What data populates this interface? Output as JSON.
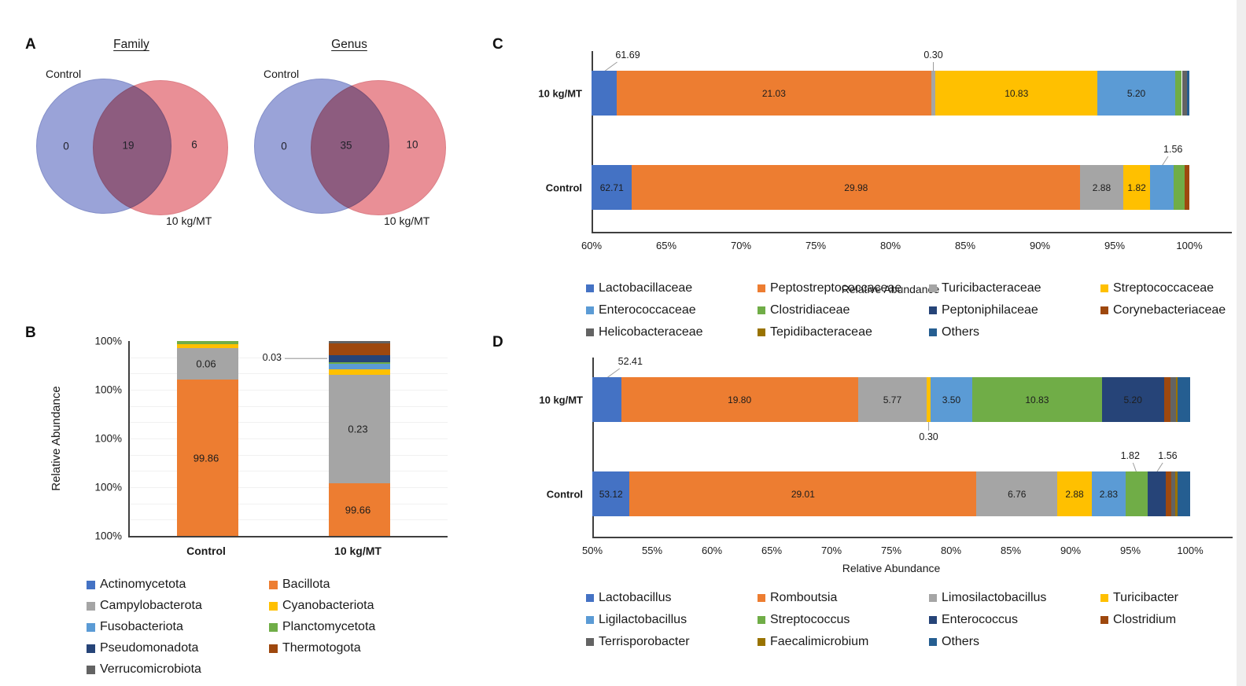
{
  "palette": {
    "blue": "#4472C4",
    "orange": "#ED7D31",
    "gray": "#A5A5A5",
    "yellow": "#FFC000",
    "lightblue": "#5B9BD5",
    "green": "#70AD47",
    "navy": "#264478",
    "darkred": "#9E480E",
    "darkgray": "#636363",
    "olive": "#997300",
    "steel": "#255E91",
    "venn_blue": "#9AA3D8",
    "venn_red": "#E98F96"
  },
  "chart_data": [
    {
      "id": "A",
      "type": "venn",
      "label": "A",
      "diagrams": [
        {
          "title": "Family",
          "left_label": "Control",
          "right_label": "10 kg/MT",
          "left_only": "0",
          "overlap": "19",
          "right_only": "6"
        },
        {
          "title": "Genus",
          "left_label": "Control",
          "right_label": "10 kg/MT",
          "left_only": "0",
          "overlap": "35",
          "right_only": "10"
        }
      ]
    },
    {
      "id": "B",
      "type": "bar",
      "stacked": true,
      "orientation": "vertical",
      "label": "B",
      "ylabel": "Relative Abundance",
      "y_ticks": [
        "100%",
        "100%",
        "100%",
        "100%",
        "100%"
      ],
      "grid": true,
      "legend": [
        {
          "name": "Actinomycetota",
          "color": "blue"
        },
        {
          "name": "Bacillota",
          "color": "orange"
        },
        {
          "name": "Campylobacterota",
          "color": "gray"
        },
        {
          "name": "Cyanobacteriota",
          "color": "yellow"
        },
        {
          "name": "Fusobacteriota",
          "color": "lightblue"
        },
        {
          "name": "Planctomycetota",
          "color": "green"
        },
        {
          "name": "Pseudomonadota",
          "color": "navy"
        },
        {
          "name": "Thermotogota",
          "color": "darkred"
        },
        {
          "name": "Verrucomicrobiota",
          "color": "darkgray"
        }
      ],
      "bars": [
        {
          "category": "Control",
          "segments": [
            {
              "color": "orange",
              "height_pct": 80.2,
              "label": "99.86"
            },
            {
              "color": "gray",
              "height_pct": 16.0,
              "label": "0.06"
            },
            {
              "color": "yellow",
              "height_pct": 2.3
            },
            {
              "color": "green",
              "height_pct": 1.5
            }
          ]
        },
        {
          "category": "10 kg/MT",
          "segments": [
            {
              "color": "orange",
              "height_pct": 27.0,
              "label": "99.66"
            },
            {
              "color": "gray",
              "height_pct": 55.8,
              "label": "0.23"
            },
            {
              "color": "yellow",
              "height_pct": 2.8
            },
            {
              "color": "lightblue",
              "height_pct": 2.8
            },
            {
              "color": "green",
              "height_pct": 0.9
            },
            {
              "color": "navy",
              "height_pct": 3.5,
              "label": "0.03",
              "callout": "left"
            },
            {
              "color": "darkred",
              "height_pct": 6.0
            },
            {
              "color": "darkgray",
              "height_pct": 1.2
            }
          ]
        }
      ]
    },
    {
      "id": "C",
      "type": "bar",
      "stacked": true,
      "orientation": "horizontal",
      "label": "C",
      "xlabel": "Relative Abundance",
      "xlim": [
        60,
        100
      ],
      "x_ticks": [
        "60%",
        "65%",
        "70%",
        "75%",
        "80%",
        "85%",
        "90%",
        "95%",
        "100%"
      ],
      "legend": [
        {
          "name": "Lactobacillaceae",
          "color": "blue"
        },
        {
          "name": "Peptostreptococcaceae",
          "color": "orange"
        },
        {
          "name": "Turicibacteraceae",
          "color": "gray"
        },
        {
          "name": "Streptococcaceae",
          "color": "yellow"
        },
        {
          "name": "Enterococcaceae",
          "color": "lightblue"
        },
        {
          "name": "Clostridiaceae",
          "color": "green"
        },
        {
          "name": "Peptoniphilaceae",
          "color": "navy"
        },
        {
          "name": "Corynebacteriaceae",
          "color": "darkred"
        },
        {
          "name": "Helicobacteraceae",
          "color": "darkgray"
        },
        {
          "name": "Tepidibacteraceae",
          "color": "olive"
        },
        {
          "name": "Others",
          "color": "steel"
        }
      ],
      "rows": [
        {
          "category": "10 kg/MT",
          "segments": [
            {
              "color": "blue",
              "value": 1.69,
              "label": "61.69",
              "callout": "above",
              "callout_dx": 30
            },
            {
              "color": "orange",
              "value": 21.03,
              "label": "21.03"
            },
            {
              "color": "gray",
              "value": 0.3,
              "label": "0.30",
              "callout": "above"
            },
            {
              "color": "yellow",
              "value": 10.83,
              "label": "10.83"
            },
            {
              "color": "lightblue",
              "value": 5.2,
              "label": "5.20"
            },
            {
              "color": "green",
              "value": 0.45
            },
            {
              "color": "darkgray",
              "value": 0.35
            },
            {
              "color": "steel",
              "value": 0.15
            }
          ]
        },
        {
          "category": "Control",
          "segments": [
            {
              "color": "blue",
              "value": 2.71,
              "label": "62.71"
            },
            {
              "color": "orange",
              "value": 29.98,
              "label": "29.98"
            },
            {
              "color": "gray",
              "value": 2.88,
              "label": "2.88"
            },
            {
              "color": "yellow",
              "value": 1.82,
              "label": "1.82"
            },
            {
              "color": "lightblue",
              "value": 1.56,
              "label": "1.56",
              "callout": "above",
              "callout_dx": 14
            },
            {
              "color": "green",
              "value": 0.75
            },
            {
              "color": "darkred",
              "value": 0.3
            }
          ]
        }
      ]
    },
    {
      "id": "D",
      "type": "bar",
      "stacked": true,
      "orientation": "horizontal",
      "label": "D",
      "xlabel": "Relative Abundance",
      "xlim": [
        50,
        100
      ],
      "x_ticks": [
        "50%",
        "55%",
        "60%",
        "65%",
        "70%",
        "75%",
        "80%",
        "85%",
        "90%",
        "95%",
        "100%"
      ],
      "legend": [
        {
          "name": "Lactobacillus",
          "color": "blue"
        },
        {
          "name": "Romboutsia",
          "color": "orange"
        },
        {
          "name": "Limosilactobacillus",
          "color": "gray"
        },
        {
          "name": "Turicibacter",
          "color": "yellow"
        },
        {
          "name": "Ligilactobacillus",
          "color": "lightblue"
        },
        {
          "name": "Streptococcus",
          "color": "green"
        },
        {
          "name": "Enterococcus",
          "color": "navy"
        },
        {
          "name": "Clostridium",
          "color": "darkred"
        },
        {
          "name": "Terrisporobacter",
          "color": "darkgray"
        },
        {
          "name": "Faecalimicrobium",
          "color": "olive"
        },
        {
          "name": "Others",
          "color": "steel"
        }
      ],
      "rows": [
        {
          "category": "10 kg/MT",
          "segments": [
            {
              "color": "blue",
              "value": 2.41,
              "label": "52.41",
              "callout": "above",
              "callout_dx": 30
            },
            {
              "color": "orange",
              "value": 19.8,
              "label": "19.80"
            },
            {
              "color": "gray",
              "value": 5.77,
              "label": "5.77"
            },
            {
              "color": "yellow",
              "value": 0.3,
              "label": "0.30",
              "callout": "below"
            },
            {
              "color": "lightblue",
              "value": 3.5,
              "label": "3.50"
            },
            {
              "color": "green",
              "value": 10.83,
              "label": "10.83"
            },
            {
              "color": "navy",
              "value": 5.2,
              "label": "5.20"
            },
            {
              "color": "darkred",
              "value": 0.55
            },
            {
              "color": "darkgray",
              "value": 0.45
            },
            {
              "color": "olive",
              "value": 0.15
            },
            {
              "color": "steel",
              "value": 1.04
            }
          ]
        },
        {
          "category": "Control",
          "segments": [
            {
              "color": "blue",
              "value": 3.12,
              "label": "53.12"
            },
            {
              "color": "orange",
              "value": 29.01,
              "label": "29.01"
            },
            {
              "color": "gray",
              "value": 6.76,
              "label": "6.76"
            },
            {
              "color": "yellow",
              "value": 2.88,
              "label": "2.88"
            },
            {
              "color": "lightblue",
              "value": 2.83,
              "label": "2.83"
            },
            {
              "color": "green",
              "value": 1.82,
              "label": "1.82",
              "callout": "above",
              "callout_dx": -8
            },
            {
              "color": "navy",
              "value": 1.56,
              "label": "1.56",
              "callout": "above",
              "callout_dx": 14
            },
            {
              "color": "darkred",
              "value": 0.45
            },
            {
              "color": "darkgray",
              "value": 0.33
            },
            {
              "color": "olive",
              "value": 0.2
            },
            {
              "color": "steel",
              "value": 1.04
            }
          ]
        }
      ]
    }
  ]
}
